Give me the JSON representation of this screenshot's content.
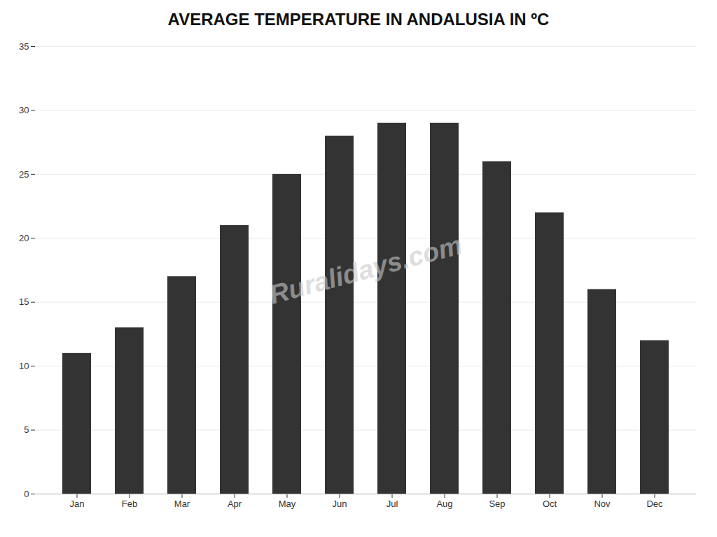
{
  "chart_data": {
    "type": "bar",
    "title": "AVERAGE TEMPERATURE IN ANDALUSIA IN ºC",
    "categories": [
      "Jan",
      "Feb",
      "Mar",
      "Apr",
      "May",
      "Jun",
      "Jul",
      "Aug",
      "Sep",
      "Oct",
      "Nov",
      "Dec"
    ],
    "values": [
      11,
      13,
      17,
      21,
      25,
      28,
      29,
      29,
      26,
      22,
      16,
      12
    ],
    "ylim": [
      0,
      35
    ],
    "yticks": [
      0,
      5,
      10,
      15,
      20,
      25,
      30,
      35
    ],
    "grid": true,
    "annotations": [
      "Ruralidays.com"
    ]
  }
}
